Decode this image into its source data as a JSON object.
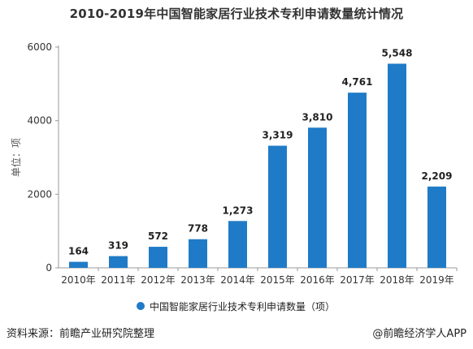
{
  "header": {
    "title": "2010-2019年中国智能家居行业技术专利申请数量统计情况"
  },
  "chart_data": {
    "type": "bar",
    "title": "2010-2019年中国智能家居行业技术专利申请数量统计情况",
    "ylabel": "单位：项",
    "xlabel": "",
    "categories": [
      "2010年",
      "2011年",
      "2012年",
      "2013年",
      "2014年",
      "2015年",
      "2016年",
      "2017年",
      "2018年",
      "2019年"
    ],
    "series": [
      {
        "name": "中国智能家居行业技术专利申请数量（项）",
        "values": [
          164,
          319,
          572,
          778,
          1273,
          3319,
          3810,
          4761,
          5548,
          2209
        ],
        "value_labels": [
          "164",
          "319",
          "572",
          "778",
          "1,273",
          "3,319",
          "3,810",
          "4,761",
          "5,548",
          "2,209"
        ]
      }
    ],
    "ylim": [
      0,
      6000
    ],
    "yticks": [
      0,
      2000,
      4000,
      6000
    ],
    "ytick_labels": [
      "0",
      "2000",
      "4000",
      "6000"
    ],
    "grid": false,
    "legend_position": "bottom",
    "bar_color": "#1f7bc7"
  },
  "footer": {
    "source": "资料来源：前瞻产业研究院整理",
    "credit": "@前瞻经济学人APP"
  }
}
